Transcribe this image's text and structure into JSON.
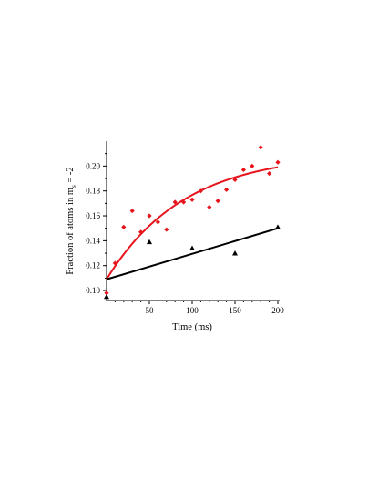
{
  "chart_data": {
    "type": "scatter",
    "xlabel": "Time (ms)",
    "ylabel_main": "Fraction of atoms in m",
    "ylabel_sub": "s",
    "ylabel_rest": " = -2",
    "xlim": [
      0,
      200
    ],
    "ylim": [
      0.092,
      0.22
    ],
    "x_ticks": [
      50,
      100,
      150,
      200
    ],
    "x_tick_labels": [
      "50",
      "100",
      "150",
      "200"
    ],
    "y_ticks": [
      0.1,
      0.12,
      0.14,
      0.16,
      0.18,
      0.2
    ],
    "y_tick_labels": [
      "0.10",
      "0.12",
      "0.14",
      "0.16",
      "0.18",
      "0.20"
    ],
    "grid": false,
    "colors": {
      "red_series": "#e8141c",
      "black_series": "#000000"
    },
    "series": [
      {
        "marker": "diamond",
        "color": "#e8141c",
        "points": [
          {
            "x": 0,
            "y": 0.098
          },
          {
            "x": 10,
            "y": 0.122
          },
          {
            "x": 20,
            "y": 0.151
          },
          {
            "x": 30,
            "y": 0.164
          },
          {
            "x": 40,
            "y": 0.147
          },
          {
            "x": 50,
            "y": 0.16
          },
          {
            "x": 60,
            "y": 0.155
          },
          {
            "x": 70,
            "y": 0.149
          },
          {
            "x": 80,
            "y": 0.171
          },
          {
            "x": 90,
            "y": 0.171
          },
          {
            "x": 100,
            "y": 0.173
          },
          {
            "x": 110,
            "y": 0.18
          },
          {
            "x": 120,
            "y": 0.167
          },
          {
            "x": 130,
            "y": 0.172
          },
          {
            "x": 140,
            "y": 0.181
          },
          {
            "x": 150,
            "y": 0.189
          },
          {
            "x": 160,
            "y": 0.197
          },
          {
            "x": 170,
            "y": 0.2
          },
          {
            "x": 180,
            "y": 0.215
          },
          {
            "x": 190,
            "y": 0.194
          },
          {
            "x": 200,
            "y": 0.203
          }
        ],
        "fit": {
          "type": "exponential",
          "y0": 0.109,
          "amplitude": 0.101,
          "tau_ms": 90
        }
      },
      {
        "marker": "triangle",
        "color": "#000000",
        "points": [
          {
            "x": 0,
            "y": 0.095
          },
          {
            "x": 50,
            "y": 0.139
          },
          {
            "x": 100,
            "y": 0.134
          },
          {
            "x": 150,
            "y": 0.13
          },
          {
            "x": 200,
            "y": 0.151
          }
        ],
        "fit": {
          "type": "linear",
          "y_at_0": 0.109,
          "y_at_200": 0.15
        }
      }
    ]
  }
}
